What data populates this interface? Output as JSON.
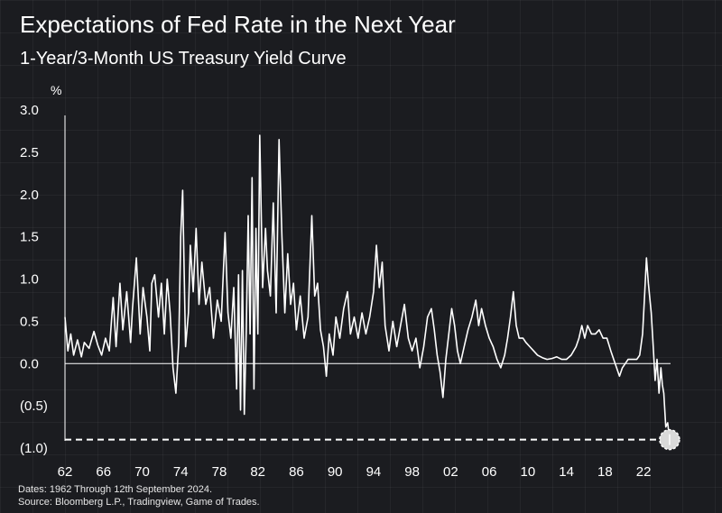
{
  "title": "Expectations of Fed Rate in the Next Year",
  "subtitle": "1-Year/3-Month US Treasury Yield Curve",
  "footer": {
    "dates": "Dates: 1962 Through 12th September 2024.",
    "source": "Source: Bloomberg L.P., Tradingview, Game of Trades."
  },
  "colors": {
    "background": "#1b1c20",
    "line": "#ffffff",
    "marker": "#d9d9d9"
  },
  "chart_data": {
    "type": "line",
    "title": "Expectations of Fed Rate in the Next Year",
    "subtitle": "1-Year/3-Month US Treasury Yield Curve",
    "ylabel": "%",
    "xlabel": "",
    "ylim": [
      -1.0,
      3.0
    ],
    "xlim": [
      1962,
      2024.8
    ],
    "y_ticks": [
      {
        "value": 3.0,
        "label": "3.0"
      },
      {
        "value": 2.5,
        "label": "2.5"
      },
      {
        "value": 2.0,
        "label": "2.0"
      },
      {
        "value": 1.5,
        "label": "1.5"
      },
      {
        "value": 1.0,
        "label": "1.0"
      },
      {
        "value": 0.5,
        "label": "0.5"
      },
      {
        "value": 0.0,
        "label": "0.0"
      },
      {
        "value": -0.5,
        "label": "(0.5)"
      },
      {
        "value": -1.0,
        "label": "(1.0)"
      }
    ],
    "x_ticks": [
      {
        "value": 1962,
        "label": "62"
      },
      {
        "value": 1966,
        "label": "66"
      },
      {
        "value": 1970,
        "label": "70"
      },
      {
        "value": 1974,
        "label": "74"
      },
      {
        "value": 1978,
        "label": "78"
      },
      {
        "value": 1982,
        "label": "82"
      },
      {
        "value": 1986,
        "label": "86"
      },
      {
        "value": 1990,
        "label": "90"
      },
      {
        "value": 1994,
        "label": "94"
      },
      {
        "value": 1998,
        "label": "98"
      },
      {
        "value": 2002,
        "label": "02"
      },
      {
        "value": 2006,
        "label": "06"
      },
      {
        "value": 2010,
        "label": "10"
      },
      {
        "value": 2014,
        "label": "14"
      },
      {
        "value": 2018,
        "label": "18"
      },
      {
        "value": 2022,
        "label": "22"
      }
    ],
    "zero_line": 0.0,
    "reference_line": {
      "value": -0.9,
      "style": "dashed"
    },
    "highlight_point": {
      "x": 2024.7,
      "y": -0.9
    },
    "series": [
      {
        "values": [
          [
            1962.0,
            0.55
          ],
          [
            1962.3,
            0.15
          ],
          [
            1962.6,
            0.35
          ],
          [
            1962.9,
            0.1
          ],
          [
            1963.3,
            0.28
          ],
          [
            1963.7,
            0.08
          ],
          [
            1964.0,
            0.25
          ],
          [
            1964.5,
            0.18
          ],
          [
            1965.0,
            0.38
          ],
          [
            1965.4,
            0.22
          ],
          [
            1965.8,
            0.1
          ],
          [
            1966.2,
            0.3
          ],
          [
            1966.6,
            0.15
          ],
          [
            1967.0,
            0.78
          ],
          [
            1967.3,
            0.2
          ],
          [
            1967.7,
            0.95
          ],
          [
            1968.0,
            0.4
          ],
          [
            1968.4,
            0.85
          ],
          [
            1968.8,
            0.25
          ],
          [
            1969.0,
            0.65
          ],
          [
            1969.4,
            1.25
          ],
          [
            1969.8,
            0.35
          ],
          [
            1970.1,
            0.9
          ],
          [
            1970.5,
            0.55
          ],
          [
            1970.8,
            0.15
          ],
          [
            1971.0,
            0.95
          ],
          [
            1971.3,
            1.05
          ],
          [
            1971.7,
            0.55
          ],
          [
            1972.0,
            0.95
          ],
          [
            1972.3,
            0.35
          ],
          [
            1972.6,
            1.0
          ],
          [
            1972.9,
            0.6
          ],
          [
            1973.2,
            -0.05
          ],
          [
            1973.5,
            -0.35
          ],
          [
            1973.8,
            0.25
          ],
          [
            1974.0,
            1.5
          ],
          [
            1974.2,
            2.05
          ],
          [
            1974.5,
            0.2
          ],
          [
            1974.8,
            0.6
          ],
          [
            1975.0,
            1.4
          ],
          [
            1975.3,
            0.85
          ],
          [
            1975.6,
            1.6
          ],
          [
            1975.9,
            0.7
          ],
          [
            1976.2,
            1.2
          ],
          [
            1976.6,
            0.7
          ],
          [
            1977.0,
            0.9
          ],
          [
            1977.4,
            0.3
          ],
          [
            1977.8,
            0.75
          ],
          [
            1978.2,
            0.5
          ],
          [
            1978.6,
            1.55
          ],
          [
            1978.9,
            0.6
          ],
          [
            1979.2,
            0.3
          ],
          [
            1979.5,
            0.9
          ],
          [
            1979.8,
            -0.3
          ],
          [
            1980.0,
            1.05
          ],
          [
            1980.2,
            -0.55
          ],
          [
            1980.4,
            1.1
          ],
          [
            1980.6,
            -0.6
          ],
          [
            1980.8,
            0.4
          ],
          [
            1981.0,
            1.75
          ],
          [
            1981.2,
            0.35
          ],
          [
            1981.4,
            2.2
          ],
          [
            1981.6,
            -0.3
          ],
          [
            1981.8,
            1.6
          ],
          [
            1982.0,
            0.35
          ],
          [
            1982.2,
            2.7
          ],
          [
            1982.5,
            0.9
          ],
          [
            1982.8,
            1.6
          ],
          [
            1983.0,
            1.1
          ],
          [
            1983.3,
            0.8
          ],
          [
            1983.6,
            1.9
          ],
          [
            1983.9,
            0.6
          ],
          [
            1984.2,
            2.65
          ],
          [
            1984.5,
            1.5
          ],
          [
            1984.8,
            0.6
          ],
          [
            1985.1,
            1.3
          ],
          [
            1985.4,
            0.7
          ],
          [
            1985.7,
            0.95
          ],
          [
            1986.0,
            0.4
          ],
          [
            1986.4,
            0.8
          ],
          [
            1986.8,
            0.3
          ],
          [
            1987.2,
            0.55
          ],
          [
            1987.6,
            1.75
          ],
          [
            1987.9,
            0.8
          ],
          [
            1988.2,
            0.95
          ],
          [
            1988.5,
            0.4
          ],
          [
            1988.8,
            0.2
          ],
          [
            1989.1,
            -0.15
          ],
          [
            1989.4,
            0.35
          ],
          [
            1989.8,
            0.1
          ],
          [
            1990.1,
            0.55
          ],
          [
            1990.5,
            0.3
          ],
          [
            1990.9,
            0.65
          ],
          [
            1991.3,
            0.85
          ],
          [
            1991.6,
            0.35
          ],
          [
            1992.0,
            0.55
          ],
          [
            1992.4,
            0.3
          ],
          [
            1992.8,
            0.6
          ],
          [
            1993.2,
            0.35
          ],
          [
            1993.6,
            0.55
          ],
          [
            1994.0,
            0.85
          ],
          [
            1994.3,
            1.4
          ],
          [
            1994.6,
            0.9
          ],
          [
            1994.9,
            1.2
          ],
          [
            1995.2,
            0.45
          ],
          [
            1995.6,
            0.15
          ],
          [
            1996.0,
            0.5
          ],
          [
            1996.4,
            0.2
          ],
          [
            1996.8,
            0.45
          ],
          [
            1997.2,
            0.7
          ],
          [
            1997.6,
            0.3
          ],
          [
            1998.0,
            0.15
          ],
          [
            1998.4,
            0.3
          ],
          [
            1998.8,
            -0.05
          ],
          [
            1999.2,
            0.2
          ],
          [
            1999.6,
            0.55
          ],
          [
            2000.0,
            0.65
          ],
          [
            2000.3,
            0.4
          ],
          [
            2000.6,
            0.1
          ],
          [
            2000.9,
            -0.1
          ],
          [
            2001.2,
            -0.4
          ],
          [
            2001.5,
            0.05
          ],
          [
            2001.8,
            0.35
          ],
          [
            2002.1,
            0.65
          ],
          [
            2002.4,
            0.45
          ],
          [
            2002.7,
            0.15
          ],
          [
            2003.0,
            0.0
          ],
          [
            2003.4,
            0.2
          ],
          [
            2003.8,
            0.4
          ],
          [
            2004.2,
            0.55
          ],
          [
            2004.6,
            0.75
          ],
          [
            2004.9,
            0.45
          ],
          [
            2005.2,
            0.65
          ],
          [
            2005.6,
            0.45
          ],
          [
            2006.0,
            0.3
          ],
          [
            2006.4,
            0.2
          ],
          [
            2006.8,
            0.05
          ],
          [
            2007.2,
            -0.05
          ],
          [
            2007.6,
            0.1
          ],
          [
            2007.9,
            0.3
          ],
          [
            2008.2,
            0.55
          ],
          [
            2008.5,
            0.85
          ],
          [
            2008.8,
            0.45
          ],
          [
            2009.1,
            0.3
          ],
          [
            2009.5,
            0.3
          ],
          [
            2009.8,
            0.25
          ],
          [
            2010.2,
            0.2
          ],
          [
            2010.6,
            0.15
          ],
          [
            2011.0,
            0.1
          ],
          [
            2011.5,
            0.07
          ],
          [
            2012.0,
            0.05
          ],
          [
            2012.5,
            0.06
          ],
          [
            2013.0,
            0.08
          ],
          [
            2013.5,
            0.05
          ],
          [
            2014.0,
            0.05
          ],
          [
            2014.5,
            0.1
          ],
          [
            2015.0,
            0.2
          ],
          [
            2015.3,
            0.3
          ],
          [
            2015.6,
            0.45
          ],
          [
            2015.9,
            0.3
          ],
          [
            2016.2,
            0.45
          ],
          [
            2016.6,
            0.35
          ],
          [
            2017.0,
            0.35
          ],
          [
            2017.4,
            0.4
          ],
          [
            2017.8,
            0.3
          ],
          [
            2018.2,
            0.3
          ],
          [
            2018.6,
            0.15
          ],
          [
            2018.9,
            0.05
          ],
          [
            2019.2,
            -0.05
          ],
          [
            2019.5,
            -0.15
          ],
          [
            2019.8,
            -0.05
          ],
          [
            2020.1,
            0.0
          ],
          [
            2020.4,
            0.05
          ],
          [
            2020.7,
            0.05
          ],
          [
            2021.0,
            0.05
          ],
          [
            2021.3,
            0.05
          ],
          [
            2021.6,
            0.1
          ],
          [
            2021.9,
            0.35
          ],
          [
            2022.1,
            0.8
          ],
          [
            2022.3,
            1.25
          ],
          [
            2022.5,
            0.95
          ],
          [
            2022.8,
            0.6
          ],
          [
            2023.0,
            0.2
          ],
          [
            2023.2,
            -0.2
          ],
          [
            2023.4,
            0.05
          ],
          [
            2023.6,
            -0.35
          ],
          [
            2023.8,
            -0.05
          ],
          [
            2023.95,
            -0.25
          ],
          [
            2024.1,
            -0.35
          ],
          [
            2024.3,
            -0.75
          ],
          [
            2024.5,
            -0.7
          ],
          [
            2024.7,
            -0.9
          ]
        ]
      }
    ]
  }
}
